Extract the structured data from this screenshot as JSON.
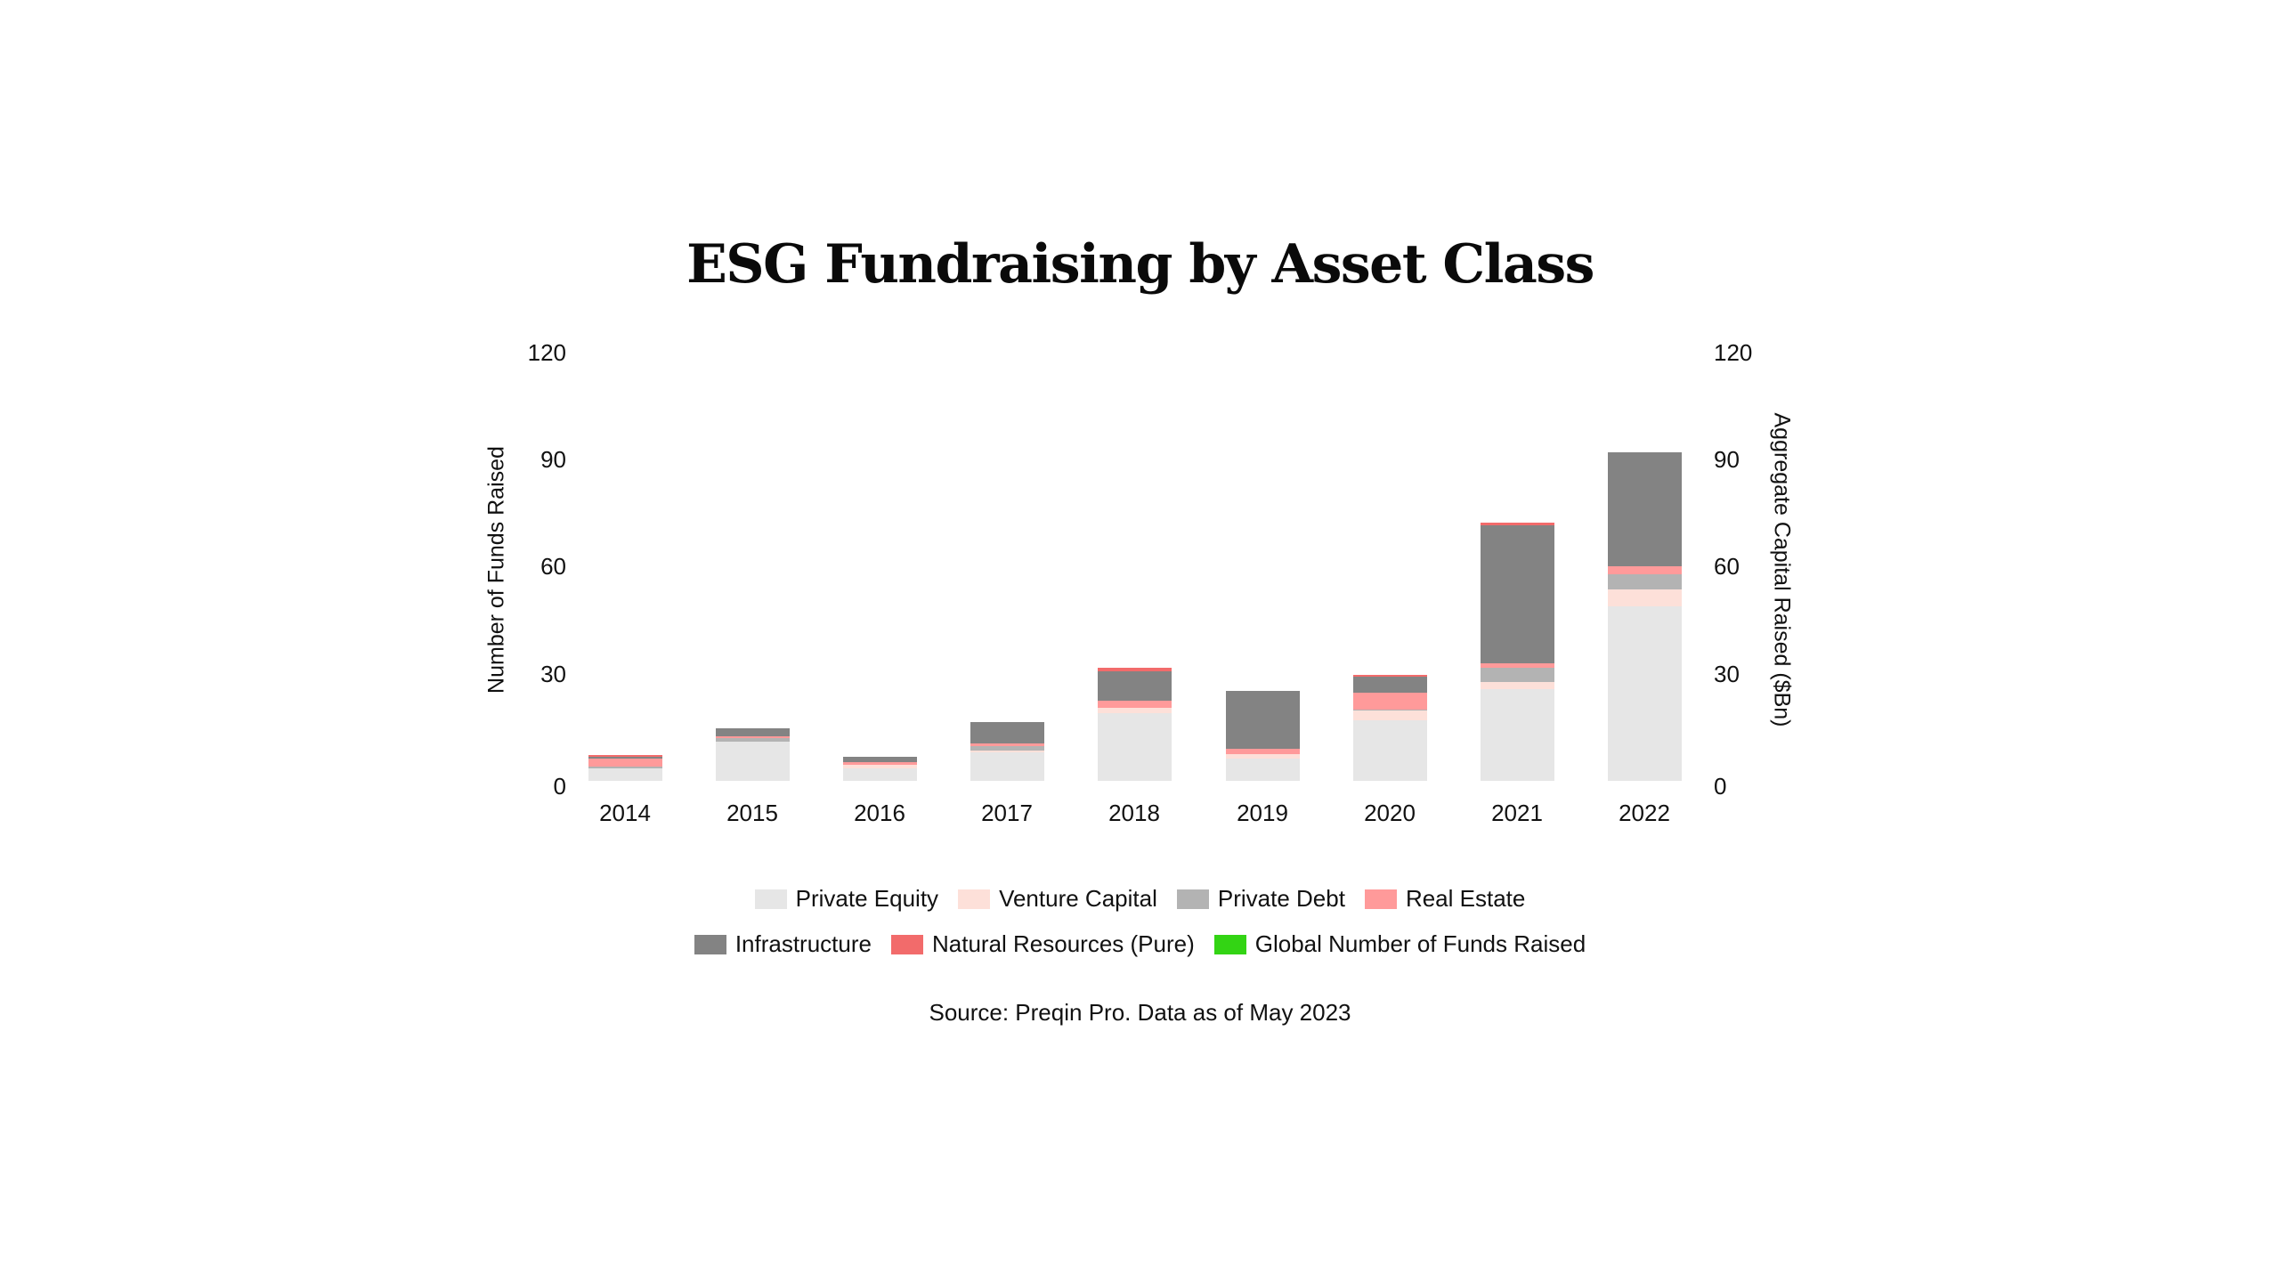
{
  "title": "ESG Fundraising by Asset Class",
  "axes": {
    "left_label": "Number of Funds Raised",
    "right_label": "Aggregate Capital Raised ($Bn)",
    "left_ticks": [
      "120",
      "90",
      "60",
      "30",
      "0"
    ],
    "right_ticks": [
      "120",
      "90",
      "60",
      "30",
      "0"
    ]
  },
  "legend": {
    "row1": [
      {
        "label": "Private Equity",
        "color": "#E6E6E6"
      },
      {
        "label": "Venture Capital",
        "color": "#FDE0D9"
      },
      {
        "label": "Private Debt",
        "color": "#B3B3B3"
      },
      {
        "label": "Real Estate",
        "color": "#FF9A9A"
      }
    ],
    "row2": [
      {
        "label": "Infrastructure",
        "color": "#838383"
      },
      {
        "label": "Natural Resources (Pure)",
        "color": "#F26B6B"
      },
      {
        "label": "Global Number of Funds Raised",
        "color": "#33D414"
      }
    ]
  },
  "source": "Source: Preqin Pro. Data as of May 2023",
  "chart_data": {
    "type": "bar",
    "stacked": true,
    "title": "ESG Fundraising by Asset Class",
    "xlabel": "",
    "ylabel": "Number of Funds Raised",
    "y2label": "Aggregate Capital Raised ($Bn)",
    "ylim": [
      0,
      120
    ],
    "y2lim": [
      0,
      120
    ],
    "yticks": [
      0,
      30,
      60,
      90,
      120
    ],
    "grid": false,
    "legend_position": "bottom",
    "categories": [
      "2014",
      "2015",
      "2016",
      "2017",
      "2018",
      "2019",
      "2020",
      "2021",
      "2022"
    ],
    "series": [
      {
        "name": "Private Equity",
        "color": "#E6E6E6",
        "values": [
          3.5,
          11,
          3.5,
          8,
          19,
          6.2,
          17,
          25.7,
          49
        ]
      },
      {
        "name": "Venture Capital",
        "color": "#FDE0D9",
        "values": [
          0,
          0,
          1,
          0.5,
          1.5,
          1.2,
          2.7,
          2,
          4.7
        ]
      },
      {
        "name": "Private Debt",
        "color": "#B3B3B3",
        "values": [
          0.5,
          1,
          0,
          1.2,
          0,
          0,
          0.3,
          4,
          4.2
        ]
      },
      {
        "name": "Real Estate",
        "color": "#FF9A9A",
        "values": [
          2.2,
          0.5,
          0.8,
          0.8,
          2,
          1.7,
          4.7,
          1.2,
          2.2
        ]
      },
      {
        "name": "Infrastructure",
        "color": "#838383",
        "values": [
          0.5,
          2.2,
          1.5,
          6,
          8.2,
          16.2,
          4.5,
          38.7,
          32
        ]
      },
      {
        "name": "Natural Resources (Pure)",
        "color": "#F26B6B",
        "values": [
          0.5,
          0,
          0,
          0,
          1,
          0,
          0.5,
          0.7,
          0
        ]
      },
      {
        "name": "Global Number of Funds Raised",
        "color": "#33D414",
        "values": []
      }
    ],
    "totals": [
      7.2,
      14.7,
      6.8,
      16.5,
      31.7,
      25.3,
      29.7,
      72.3,
      92.1
    ]
  }
}
